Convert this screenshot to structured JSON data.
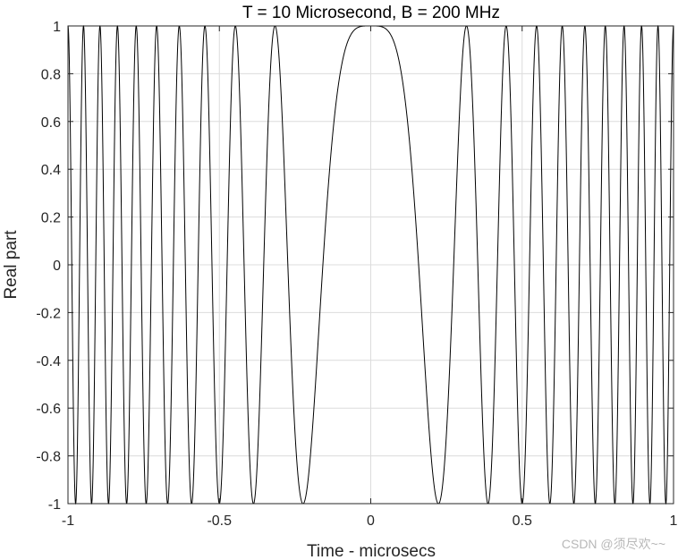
{
  "chart_data": {
    "type": "line",
    "title": "T = 10 Microsecond, B = 200 MHz",
    "xlabel": "Time - microsecs",
    "ylabel": "Real part",
    "xlim": [
      -1,
      1
    ],
    "ylim": [
      -1,
      1
    ],
    "xticks": [
      -1,
      -0.5,
      0,
      0.5,
      1
    ],
    "xtick_labels": [
      "-1",
      "-0.5",
      "0",
      "0.5",
      "1"
    ],
    "yticks": [
      -1,
      -0.8,
      -0.6,
      -0.4,
      -0.2,
      0,
      0.2,
      0.4,
      0.6,
      0.8,
      1
    ],
    "ytick_labels": [
      "-1",
      "-0.8",
      "-0.6",
      "-0.4",
      "-0.2",
      "0",
      "0.2",
      "0.4",
      "0.6",
      "0.8",
      "1"
    ],
    "grid": true,
    "legend": "none",
    "series": [
      {
        "function": "cos(pi * (B/T) * t^2)",
        "T_us": 10,
        "B_MHz": 200,
        "t_range": [
          -1,
          1
        ],
        "color": "#000000"
      }
    ]
  },
  "watermark": "CSDN @须尽欢~~"
}
